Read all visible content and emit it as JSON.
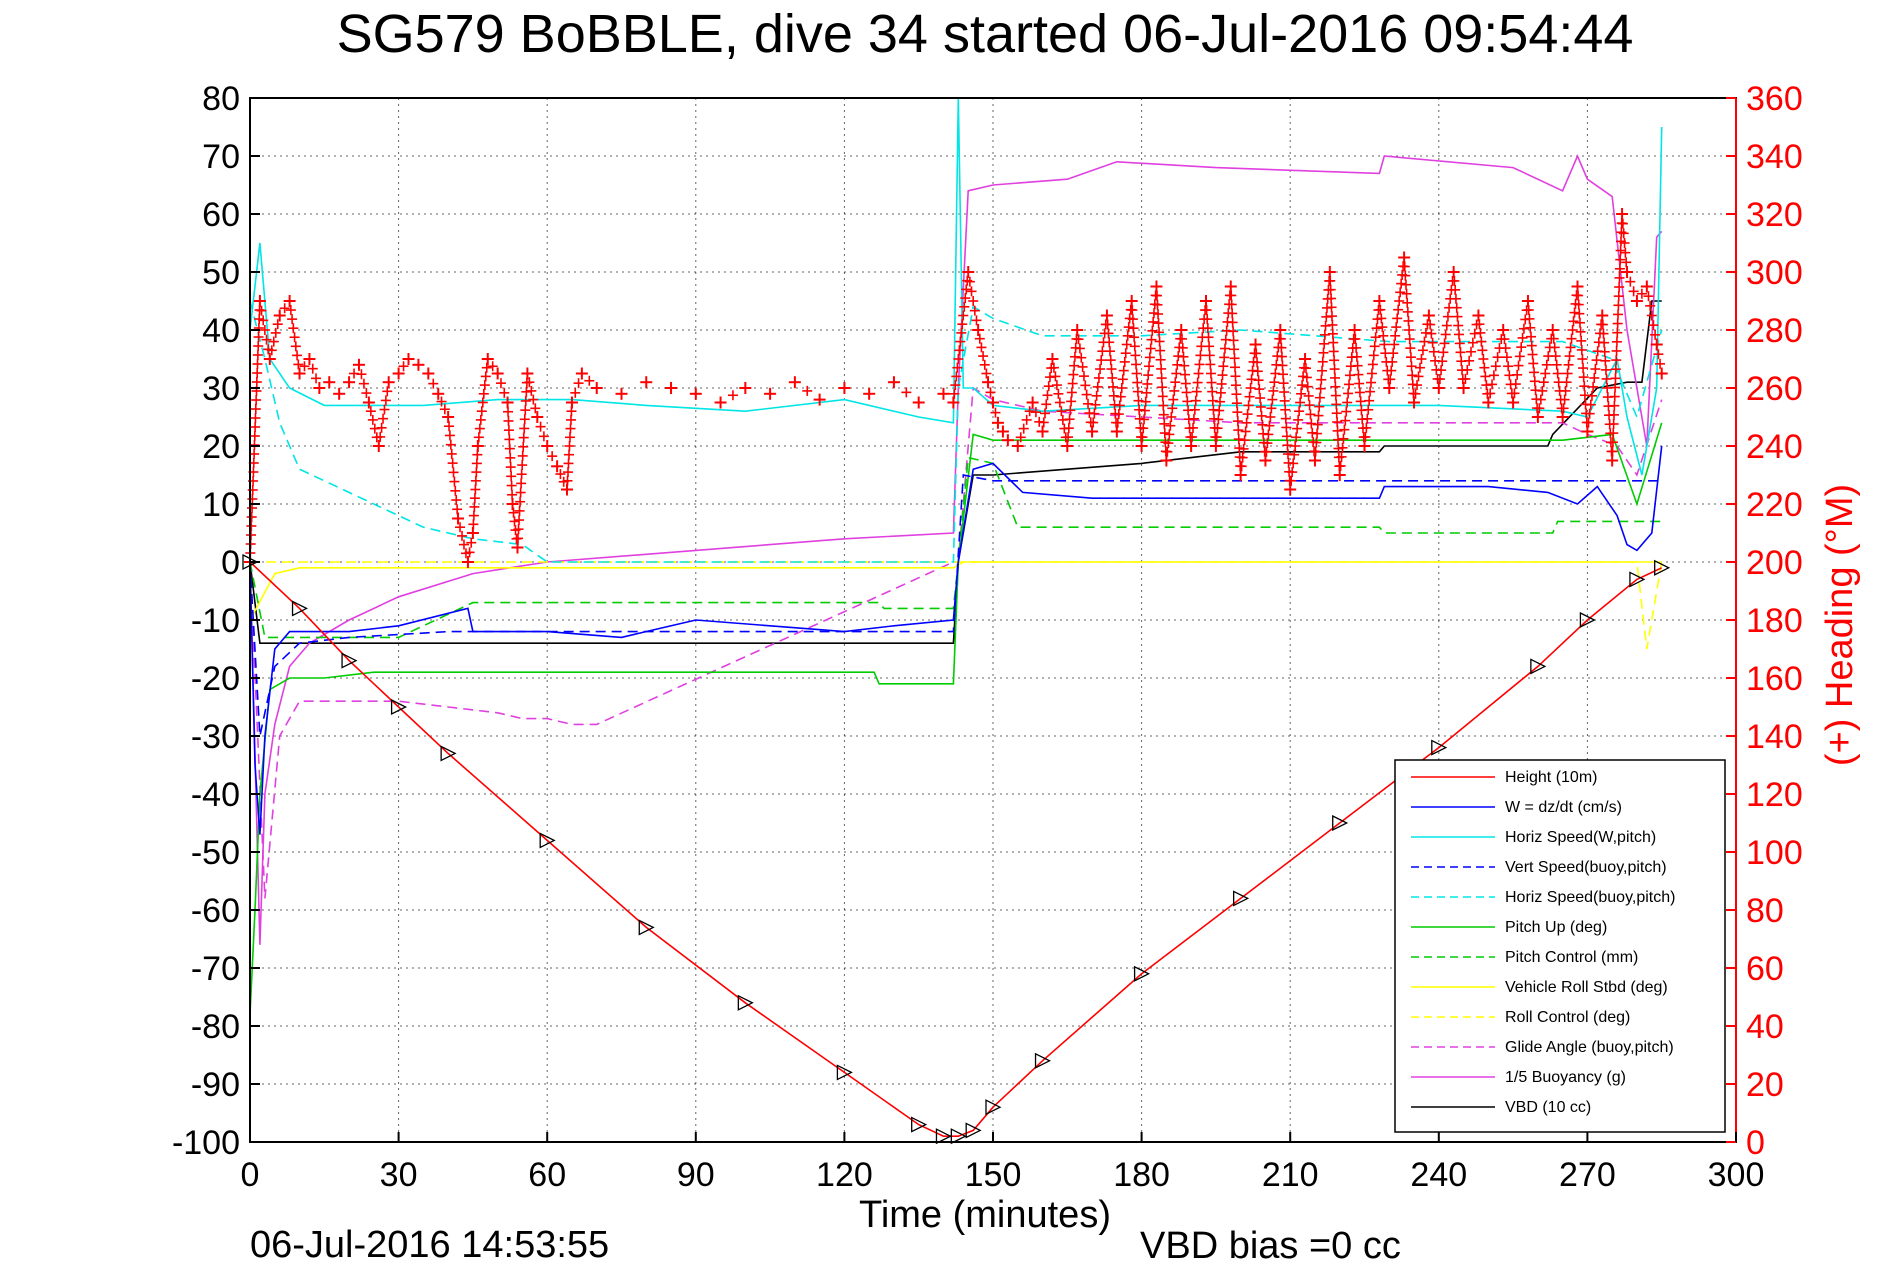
{
  "chart_data": {
    "type": "line",
    "title": "SG579 BoBBLE, dive 34 started 06-Jul-2016 09:54:44",
    "xlabel": "Time (minutes)",
    "ylabel": "",
    "y2label": "(+) Heading (°M)",
    "xlim": [
      0,
      300
    ],
    "ylim": [
      -100,
      80
    ],
    "y2lim": [
      0,
      360
    ],
    "x_ticks": [
      0,
      30,
      60,
      90,
      120,
      150,
      180,
      210,
      240,
      270,
      300
    ],
    "y_ticks": [
      80,
      70,
      60,
      50,
      40,
      30,
      20,
      10,
      0,
      -10,
      -20,
      -30,
      -40,
      -50,
      -60,
      -70,
      -80,
      -90,
      -100
    ],
    "y2_ticks": [
      360,
      340,
      320,
      300,
      280,
      260,
      240,
      220,
      200,
      180,
      160,
      140,
      120,
      100,
      80,
      60,
      40,
      20,
      0
    ],
    "grid": true,
    "legend_position": "bottom-right",
    "footer_left": "06-Jul-2016 14:53:55",
    "footer_right": "VBD bias =0 cc",
    "series": [
      {
        "name": "Height (10m)",
        "color": "#ff0000",
        "style": "solid",
        "x": [
          0,
          10,
          20,
          30,
          40,
          60,
          80,
          100,
          120,
          135,
          140,
          143,
          146,
          150,
          160,
          180,
          200,
          220,
          240,
          260,
          270,
          280,
          285
        ],
        "y": [
          0,
          -8,
          -17,
          -25,
          -33,
          -48,
          -63,
          -76,
          -88,
          -97,
          -99,
          -99,
          -98,
          -94,
          -86,
          -71,
          -58,
          -45,
          -32,
          -18,
          -10,
          -3,
          -1
        ]
      },
      {
        "name": "W = dz/dt (cm/s)",
        "color": "#0000ff",
        "style": "solid",
        "x": [
          0,
          1,
          2,
          3,
          5,
          8,
          12,
          20,
          30,
          44,
          45,
          60,
          75,
          90,
          105,
          120,
          130,
          142,
          143,
          146,
          150,
          156,
          170,
          200,
          228,
          229,
          250,
          262,
          268,
          272,
          276,
          278,
          280,
          283,
          285
        ],
        "y": [
          0,
          -35,
          -47,
          -30,
          -15,
          -12,
          -12,
          -12,
          -11,
          -8,
          -12,
          -12,
          -13,
          -10,
          -11,
          -12,
          -11,
          -10,
          0,
          16,
          17,
          12,
          11,
          11,
          11,
          13,
          13,
          12,
          10,
          13,
          8,
          3,
          2,
          5,
          20
        ]
      },
      {
        "name": "Horiz Speed(W,pitch)",
        "color": "#00e5e5",
        "style": "solid",
        "x": [
          0,
          2,
          4,
          8,
          15,
          25,
          35,
          50,
          65,
          80,
          100,
          120,
          135,
          142,
          143,
          144,
          146,
          150,
          160,
          180,
          210,
          240,
          265,
          270,
          276,
          278,
          281,
          284,
          285
        ],
        "y": [
          40,
          55,
          35,
          30,
          27,
          27,
          27,
          28,
          28,
          27,
          26,
          28,
          25,
          24,
          80,
          30,
          30,
          27,
          26,
          27,
          27,
          27,
          26,
          25,
          35,
          25,
          15,
          30,
          75
        ]
      },
      {
        "name": "Vert Speed(buoy,pitch)",
        "color": "#0000ff",
        "style": "dashed",
        "x": [
          0,
          2,
          5,
          10,
          20,
          40,
          60,
          90,
          120,
          142,
          144,
          150,
          180,
          210,
          240,
          270,
          285
        ],
        "y": [
          0,
          -30,
          -18,
          -14,
          -13,
          -12,
          -12,
          -12,
          -12,
          -12,
          15,
          14,
          14,
          14,
          14,
          14,
          14
        ]
      },
      {
        "name": "Horiz Speed(buoy,pitch)",
        "color": "#00e5e5",
        "style": "dashed",
        "x": [
          0,
          3,
          6,
          10,
          15,
          25,
          35,
          45,
          55,
          60,
          70,
          142,
          143,
          146,
          150,
          160,
          180,
          200,
          230,
          265,
          275,
          280,
          285
        ],
        "y": [
          45,
          35,
          24,
          16,
          14,
          10,
          6,
          4,
          3,
          0,
          0,
          0,
          30,
          44,
          42,
          39,
          39,
          40,
          38,
          38,
          35,
          25,
          40
        ]
      },
      {
        "name": "Pitch Up (deg)",
        "color": "#00cc00",
        "style": "solid",
        "x": [
          0,
          1,
          2,
          4,
          8,
          15,
          25,
          35,
          45,
          60,
          75,
          90,
          105,
          126,
          127,
          142,
          143,
          146,
          150,
          160,
          180,
          210,
          240,
          265,
          275,
          280,
          285
        ],
        "y": [
          -78,
          -60,
          -40,
          -22,
          -20,
          -20,
          -19,
          -19,
          -19,
          -19,
          -19,
          -19,
          -19,
          -19,
          -21,
          -21,
          0,
          22,
          21,
          21,
          21,
          21,
          21,
          21,
          22,
          10,
          24
        ]
      },
      {
        "name": "Pitch Control (mm)",
        "color": "#00cc00",
        "style": "dashed",
        "x": [
          0,
          3,
          5,
          10,
          20,
          30,
          45,
          60,
          90,
          127,
          128,
          142,
          143,
          145,
          150,
          155,
          160,
          200,
          228,
          229,
          263,
          264,
          285
        ],
        "y": [
          0,
          -13,
          -13,
          -13,
          -13,
          -13,
          -7,
          -7,
          -7,
          -7,
          -8,
          -8,
          0,
          18,
          17,
          6,
          6,
          6,
          6,
          5,
          5,
          7,
          7
        ]
      },
      {
        "name": "Vehicle Roll Stbd (deg)",
        "color": "#ffff00",
        "style": "solid",
        "x": [
          0,
          5,
          10,
          30,
          60,
          90,
          120,
          140,
          142,
          144,
          146,
          160,
          200,
          240,
          270,
          285
        ],
        "y": [
          -10,
          -2,
          -1,
          -1,
          -1,
          -1,
          -1,
          -1,
          -1,
          0,
          0,
          0,
          0,
          0,
          0,
          0
        ]
      },
      {
        "name": "Roll Control (deg)",
        "color": "#ffff00",
        "style": "dashed",
        "x": [
          0,
          5,
          10,
          30,
          60,
          90,
          120,
          142,
          144,
          160,
          200,
          240,
          270,
          280,
          282,
          285
        ],
        "y": [
          0,
          0,
          0,
          0,
          0,
          0,
          0,
          0,
          0,
          0,
          0,
          0,
          0,
          0,
          -15,
          0
        ]
      },
      {
        "name": "Glide Angle (buoy,pitch)",
        "color": "#e040e0",
        "style": "dashed",
        "x": [
          0,
          3,
          6,
          10,
          20,
          30,
          40,
          50,
          55,
          60,
          65,
          70,
          142,
          143,
          146,
          150,
          160,
          200,
          240,
          265,
          270,
          276,
          280,
          285
        ],
        "y": [
          0,
          -58,
          -30,
          -24,
          -24,
          -24,
          -25,
          -26,
          -27,
          -27,
          -28,
          -28,
          0,
          0,
          30,
          28,
          26,
          24,
          24,
          24,
          22,
          20,
          15,
          28
        ]
      },
      {
        "name": "1/5 Buoyancy (g)",
        "color": "#e040e0",
        "style": "solid",
        "x": [
          0,
          2,
          3,
          5,
          8,
          12,
          20,
          30,
          45,
          60,
          90,
          120,
          142,
          143,
          145,
          150,
          165,
          175,
          195,
          228,
          229,
          255,
          265,
          268,
          270,
          275,
          278,
          282,
          284,
          285
        ],
        "y": [
          0,
          -66,
          -40,
          -28,
          -18,
          -14,
          -10,
          -6,
          -2,
          0,
          2,
          4,
          5,
          30,
          64,
          65,
          66,
          69,
          68,
          67,
          70,
          68,
          64,
          70,
          66,
          63,
          40,
          20,
          56,
          57
        ]
      },
      {
        "name": "VBD (10 cc)",
        "color": "#000000",
        "style": "solid",
        "x": [
          0,
          2,
          3,
          10,
          20,
          30,
          45,
          60,
          90,
          120,
          142,
          143,
          146,
          150,
          165,
          180,
          190,
          200,
          210,
          220,
          228,
          229,
          255,
          262,
          263,
          272,
          278,
          281,
          283,
          285
        ],
        "y": [
          0,
          -14,
          -14,
          -14,
          -14,
          -14,
          -14,
          -14,
          -14,
          -14,
          -14,
          0,
          15,
          15,
          16,
          17,
          18,
          19,
          19,
          19,
          19,
          20,
          20,
          20,
          22,
          30,
          31,
          31,
          45,
          45
        ]
      }
    ],
    "heading_series": {
      "name": "(+) Heading (°M)",
      "color": "#ff0000",
      "marker": "+",
      "axis": "right",
      "x": [
        0,
        2,
        4,
        6,
        8,
        10,
        12,
        14,
        16,
        18,
        20,
        22,
        24,
        26,
        28,
        30,
        32,
        34,
        36,
        38,
        40,
        42,
        44,
        45,
        46,
        48,
        50,
        52,
        53,
        54,
        56,
        58,
        60,
        62,
        64,
        65,
        67,
        70,
        75,
        80,
        85,
        90,
        95,
        100,
        105,
        110,
        115,
        120,
        125,
        130,
        135,
        140,
        142,
        145,
        147,
        149,
        150,
        151,
        152,
        153,
        155,
        158,
        160,
        162,
        165,
        167,
        170,
        173,
        175,
        178,
        180,
        183,
        185,
        188,
        190,
        193,
        195,
        198,
        200,
        203,
        205,
        208,
        210,
        213,
        215,
        218,
        220,
        223,
        225,
        228,
        230,
        233,
        235,
        238,
        240,
        243,
        245,
        248,
        250,
        253,
        255,
        258,
        260,
        263,
        265,
        268,
        270,
        273,
        275,
        277,
        278,
        280,
        282,
        284,
        285
      ],
      "y": [
        200,
        290,
        270,
        285,
        290,
        265,
        270,
        260,
        262,
        258,
        262,
        268,
        255,
        240,
        262,
        265,
        270,
        268,
        265,
        258,
        250,
        215,
        200,
        210,
        240,
        270,
        265,
        255,
        220,
        205,
        265,
        250,
        240,
        233,
        225,
        255,
        265,
        260,
        258,
        262,
        260,
        258,
        255,
        260,
        258,
        262,
        256,
        260,
        258,
        262,
        255,
        258,
        255,
        300,
        280,
        262,
        255,
        248,
        245,
        242,
        240,
        255,
        245,
        270,
        240,
        280,
        245,
        285,
        245,
        290,
        240,
        295,
        235,
        280,
        240,
        290,
        240,
        295,
        230,
        275,
        235,
        280,
        225,
        270,
        235,
        300,
        230,
        280,
        240,
        290,
        260,
        305,
        255,
        285,
        260,
        300,
        260,
        285,
        255,
        280,
        255,
        290,
        250,
        280,
        250,
        295,
        245,
        285,
        235,
        320,
        300,
        290,
        295,
        275,
        265
      ]
    }
  }
}
